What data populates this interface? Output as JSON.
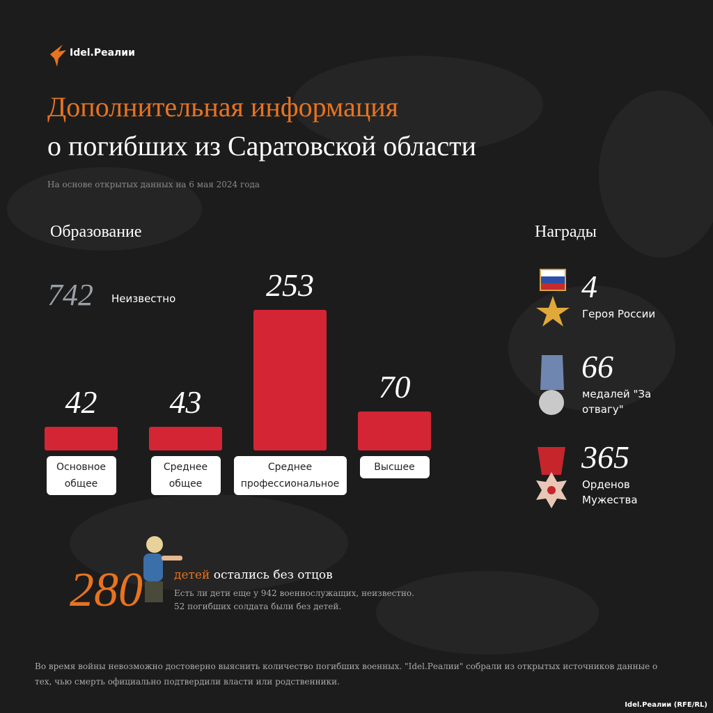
{
  "header": {
    "brand": "Idel.Реалии",
    "title_line1": "Дополнительная информация",
    "title_line2": "о погибших из Саратовской области",
    "subtitle": "На основе открытых данных на 6 мая 2024 года"
  },
  "chart_data": {
    "type": "bar",
    "title": "Образование",
    "categories": [
      "Основное общее",
      "Среднее общее",
      "Среднее профессиональное",
      "Высшее"
    ],
    "values": [
      42,
      43,
      253,
      70
    ],
    "color": "#d42535"
  },
  "unknown": {
    "value": 742,
    "label": "Неизвестно"
  },
  "awards": {
    "title": "Награды",
    "items": [
      {
        "value": 4,
        "label": "Героя России"
      },
      {
        "value": 66,
        "label": "медалей \"За отвагу\""
      },
      {
        "value": 365,
        "label": "Орденов Мужества"
      }
    ]
  },
  "children": {
    "value": 280,
    "highlight": "детей",
    "text": "остались без отцов",
    "note1": "Есть ли дети еще у 942 военнослужащих, неизвестно.",
    "note2": "52 погибших солдата были без детей."
  },
  "footer": {
    "note": "Во время войны невозможно достоверно выяснить количество погибших военных. \"Idel.Реалии\" собрали из открытых источников данные о тех, чью смерть официально подтвердили власти или родственники.",
    "credit": "Idel.Реалии (RFE/RL)"
  }
}
